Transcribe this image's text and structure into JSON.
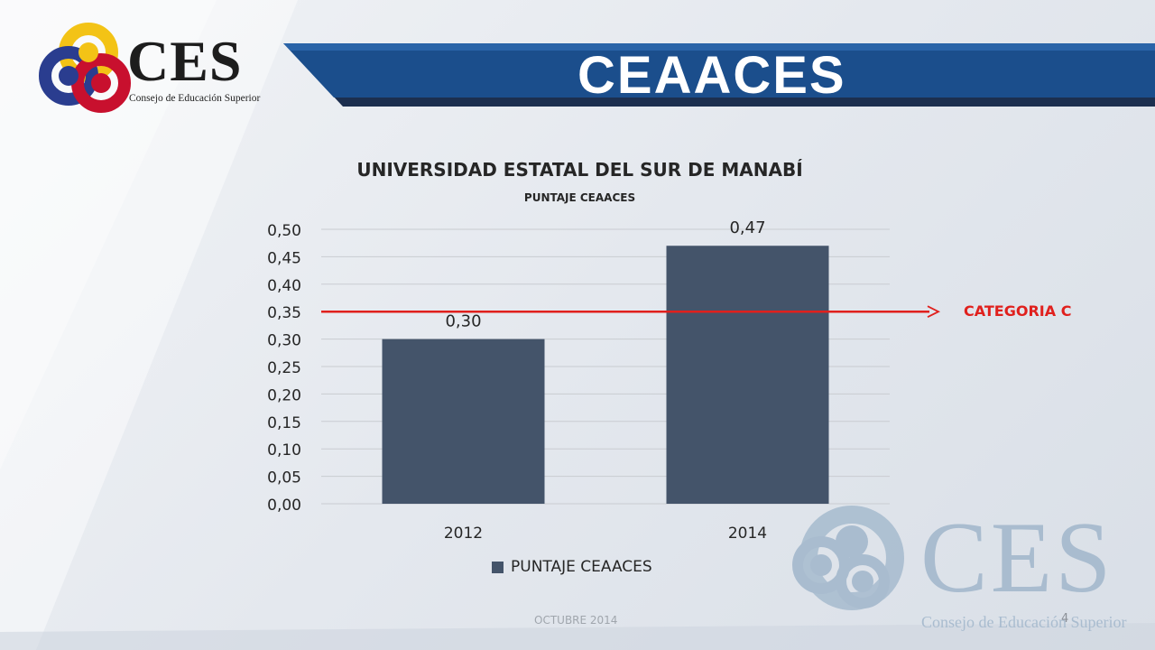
{
  "header": {
    "title": "CEAACES",
    "logo_text": "CES",
    "logo_subtitle": "Consejo de Educación Superior",
    "banner_color": "#1b4e8c"
  },
  "chart_data": {
    "type": "bar",
    "title": "UNIVERSIDAD ESTATAL DEL SUR DE MANABÍ",
    "subtitle": "PUNTAJE CEAACES",
    "categories": [
      "2012",
      "2014"
    ],
    "series": [
      {
        "name": "PUNTAJE CEAACES",
        "values": [
          0.3,
          0.47
        ],
        "color": "#44546a"
      }
    ],
    "data_labels": [
      "0,30",
      "0,47"
    ],
    "ylim": [
      0,
      0.5
    ],
    "yticks": [
      "0,00",
      "0,05",
      "0,10",
      "0,15",
      "0,20",
      "0,25",
      "0,30",
      "0,35",
      "0,40",
      "0,45",
      "0,50"
    ],
    "grid": true,
    "legend": "bottom",
    "reference_line": {
      "value": 0.35,
      "label": "CATEGORIA C",
      "color": "#e0201d"
    }
  },
  "watermark": {
    "text": "CES",
    "subtitle": "Consejo de Educación Superior"
  },
  "footer": {
    "date": "OCTUBRE 2014",
    "page_number": "4"
  }
}
